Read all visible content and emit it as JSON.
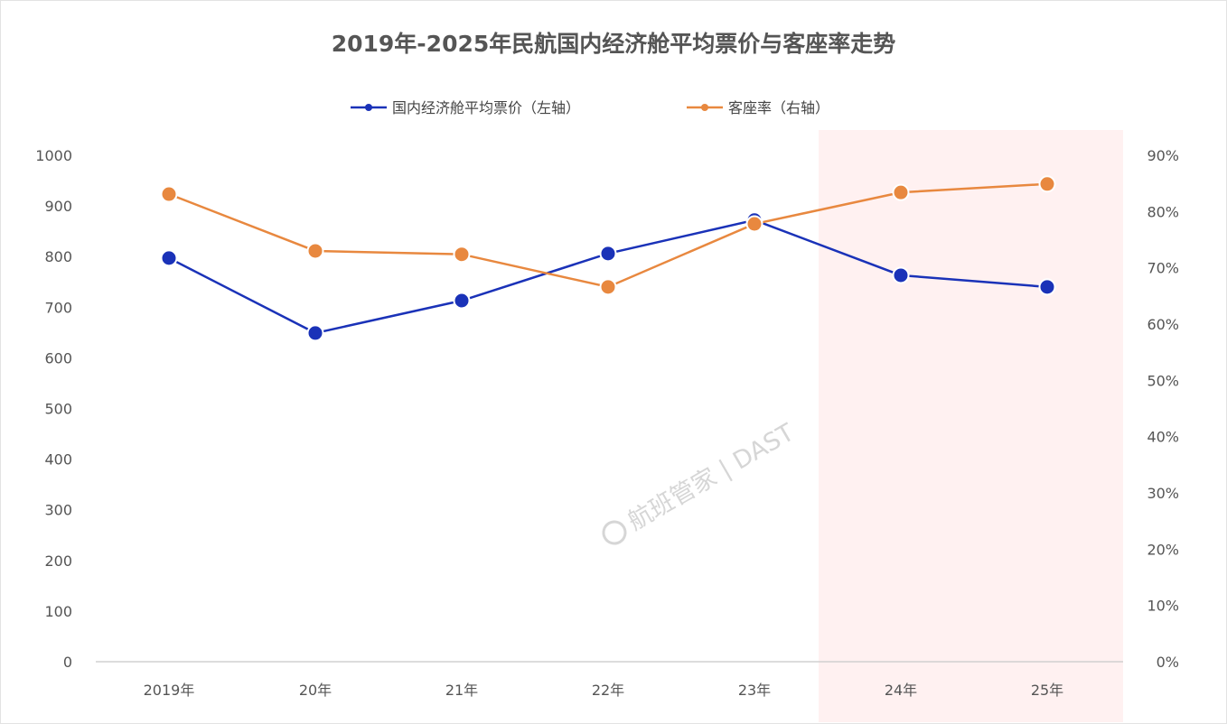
{
  "chart_data": {
    "type": "line",
    "title": "2019年-2025年民航国内经济舱平均票价与客座率走势",
    "categories": [
      "2019年",
      "20年",
      "21年",
      "22年",
      "23年",
      "24年",
      "25年"
    ],
    "series": [
      {
        "name": "国内经济舱平均票价（左轴）",
        "axis": "left",
        "color": "#1a32b8",
        "values": [
          797,
          649,
          713,
          806,
          872,
          763,
          740
        ]
      },
      {
        "name": "客座率（右轴）",
        "axis": "right",
        "color": "#e8883f",
        "values": [
          83.1,
          73.0,
          72.4,
          66.6,
          77.8,
          83.4,
          84.9
        ]
      }
    ],
    "left_axis": {
      "ylim": [
        0,
        1000
      ],
      "ticks": [
        "0",
        "100",
        "200",
        "300",
        "400",
        "500",
        "600",
        "700",
        "800",
        "900",
        "1000"
      ]
    },
    "right_axis": {
      "ylim": [
        0,
        90
      ],
      "ticks": [
        "0%",
        "10%",
        "20%",
        "30%",
        "40%",
        "50%",
        "60%",
        "70%",
        "80%",
        "90%"
      ]
    },
    "highlight_categories": [
      "24年",
      "25年"
    ],
    "highlight_color": "#fff1f1",
    "grid": false,
    "legend_position": "top",
    "watermark": "航班管家|DAST"
  }
}
